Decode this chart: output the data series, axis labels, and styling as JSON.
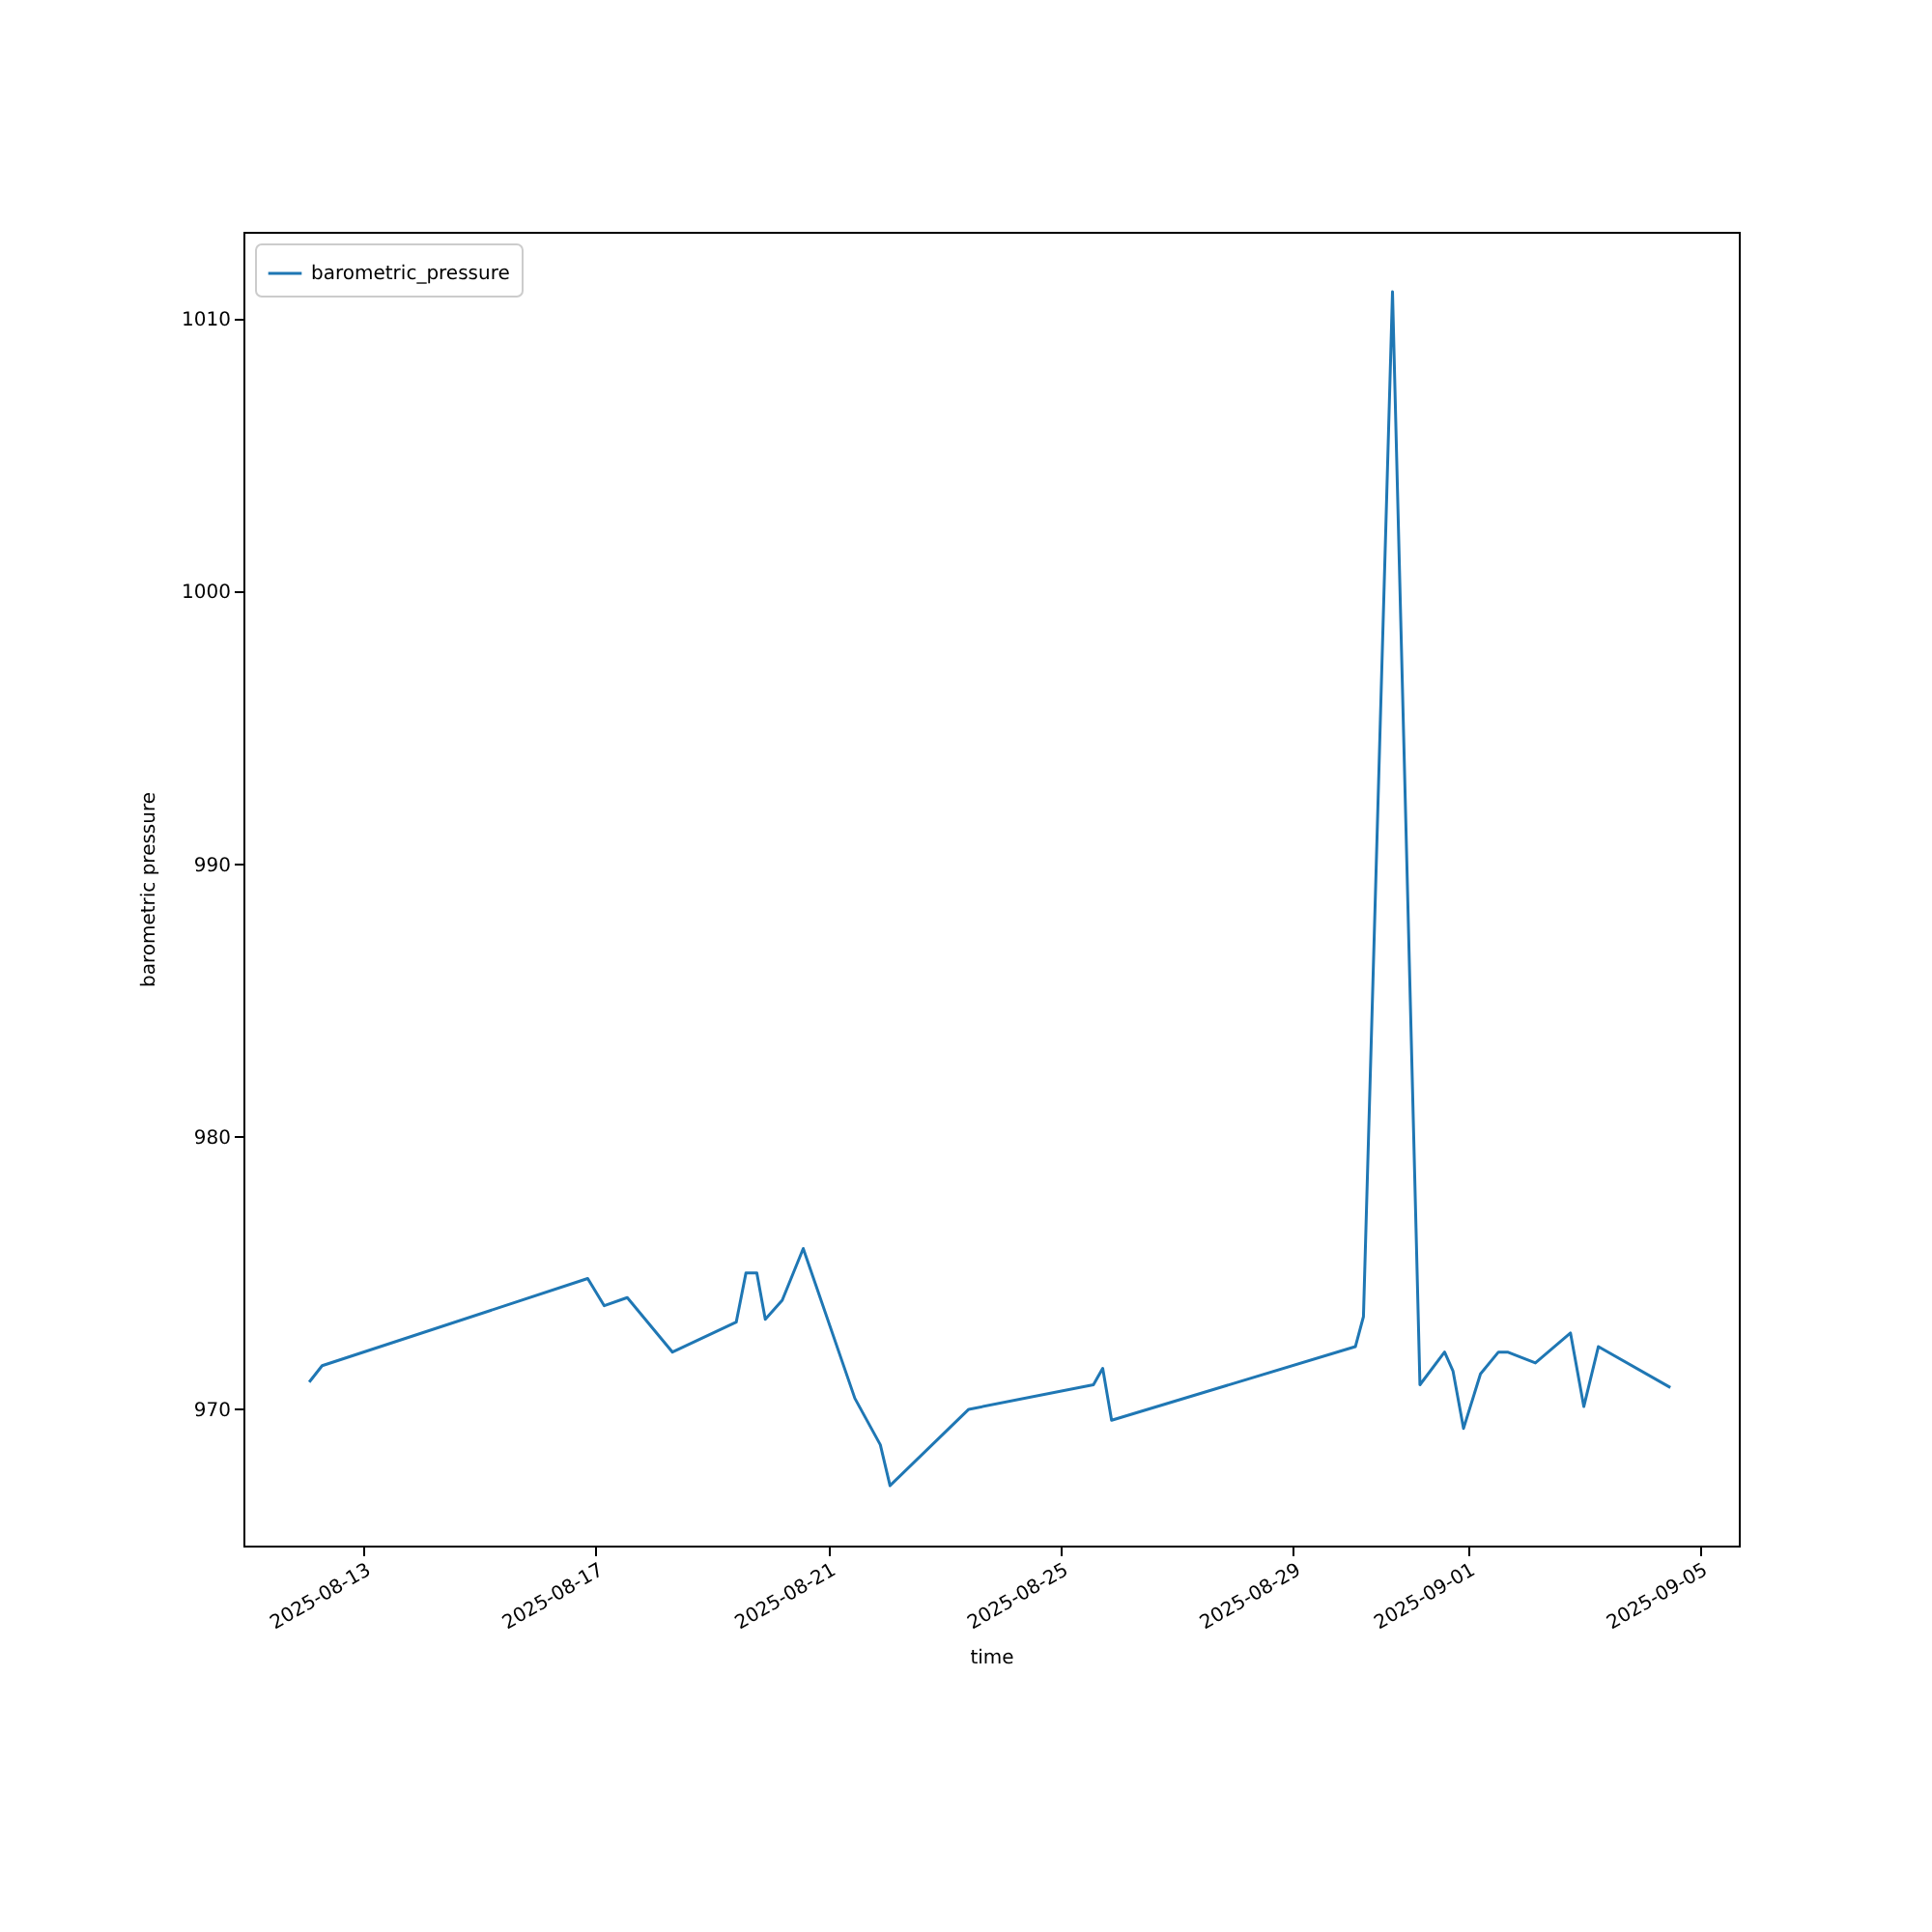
{
  "chart_data": {
    "type": "line",
    "xlabel": "time",
    "ylabel": "barometric pressure",
    "legend": "top left",
    "grid": false,
    "x": [
      "2025-08-12T01:40",
      "2025-08-12T07:00",
      "2025-08-16T20:40",
      "2025-08-17T03:30",
      "2025-08-17T13:00",
      "2025-08-18T07:40",
      "2025-08-19T10:00",
      "2025-08-19T14:00",
      "2025-08-19T18:30",
      "2025-08-19T22:00",
      "2025-08-20T05:00",
      "2025-08-20T13:40",
      "2025-08-21T11:00",
      "2025-08-21T21:30",
      "2025-08-22T01:30",
      "2025-08-23T10:00",
      "2025-08-25T13:30",
      "2025-08-25T17:20",
      "2025-08-25T21:00",
      "2025-08-30T01:40",
      "2025-08-30T05:00",
      "2025-08-30T17:00",
      "2025-08-31T04:20",
      "2025-08-31T14:30",
      "2025-08-31T18:00",
      "2025-08-31T22:20",
      "2025-09-01T05:20",
      "2025-09-01T12:45",
      "2025-09-01T16:30",
      "2025-09-02T04:00",
      "2025-09-02T18:30",
      "2025-09-03T00:00",
      "2025-09-03T06:00",
      "2025-09-04T11:45"
    ],
    "series": [
      {
        "name": "barometric_pressure",
        "color": "#1f77b4",
        "values": [
          971.0,
          971.6,
          974.8,
          973.8,
          974.1,
          972.1,
          973.2,
          975.0,
          975.0,
          973.3,
          974.0,
          975.9,
          970.4,
          968.7,
          967.2,
          970.0,
          970.9,
          971.5,
          969.6,
          972.3,
          973.4,
          1011.0,
          970.9,
          972.1,
          971.4,
          969.3,
          971.3,
          972.1,
          972.1,
          971.7,
          972.8,
          970.1,
          972.3,
          970.8
        ]
      }
    ],
    "xlim": [
      "2025-08-10T22:30",
      "2025-09-05T16:00"
    ],
    "xticks": [
      "2025-08-13",
      "2025-08-17",
      "2025-08-21",
      "2025-08-25",
      "2025-08-29",
      "2025-09-01",
      "2025-09-05"
    ],
    "ylim": [
      965.0,
      1013.2
    ],
    "yticks": [
      970,
      980,
      990,
      1000,
      1010
    ]
  }
}
